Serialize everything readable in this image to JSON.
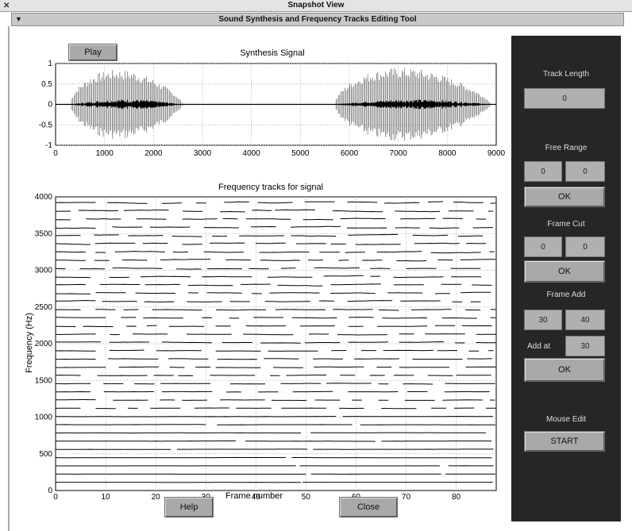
{
  "window": {
    "title": "Snapshot View"
  },
  "app": {
    "title": "Sound Synthesis and Frequency Tracks Editing Tool"
  },
  "buttons": {
    "play": "Play",
    "help": "Help",
    "close": "Close"
  },
  "signal_plot": {
    "title": "Synthesis Signal",
    "x_ticks": [
      "0",
      "1000",
      "2000",
      "3000",
      "4000",
      "5000",
      "6000",
      "7000",
      "8000",
      "9000"
    ],
    "y_ticks": [
      "1",
      "0.5",
      "0",
      "-0.5",
      "-1"
    ]
  },
  "tracks_plot": {
    "title": "Frequency tracks for signal",
    "xlabel": "Frame number",
    "ylabel": "Frequency (Hz)",
    "x_ticks": [
      "0",
      "10",
      "20",
      "30",
      "40",
      "50",
      "60",
      "70",
      "80"
    ],
    "y_ticks": [
      "4000",
      "3500",
      "3000",
      "2500",
      "2000",
      "1500",
      "1000",
      "500",
      "0"
    ]
  },
  "side_panel": {
    "track_length": {
      "label": "Track Length",
      "value": "0"
    },
    "free_range": {
      "label": "Free Range",
      "from": "0",
      "to": "0",
      "ok": "OK"
    },
    "frame_cut": {
      "label": "Frame Cut",
      "from": "0",
      "to": "0",
      "ok": "OK"
    },
    "frame_add": {
      "label": "Frame Add",
      "from": "30",
      "to": "40",
      "add_label": "Add at",
      "add_value": "30",
      "ok": "OK"
    },
    "mouse_edit": {
      "label": "Mouse Edit",
      "start": "START"
    }
  },
  "chart_data": [
    {
      "type": "line",
      "title": "Synthesis Signal",
      "xlim": [
        0,
        9000
      ],
      "ylim": [
        -1,
        1
      ],
      "grid": true,
      "note_segments": [
        {
          "x_start": 300,
          "x_end": 2600,
          "peak_amplitude": 0.85
        },
        {
          "x_start": 5700,
          "x_end": 8900,
          "peak_amplitude": 0.9
        }
      ]
    },
    {
      "type": "line",
      "title": "Frequency tracks for signal",
      "xlabel": "Frame number",
      "ylabel": "Frequency (Hz)",
      "xlim": [
        0,
        88
      ],
      "ylim": [
        0,
        4000
      ],
      "grid": true,
      "track_spacing_hz": 112,
      "track_count": 35
    }
  ]
}
